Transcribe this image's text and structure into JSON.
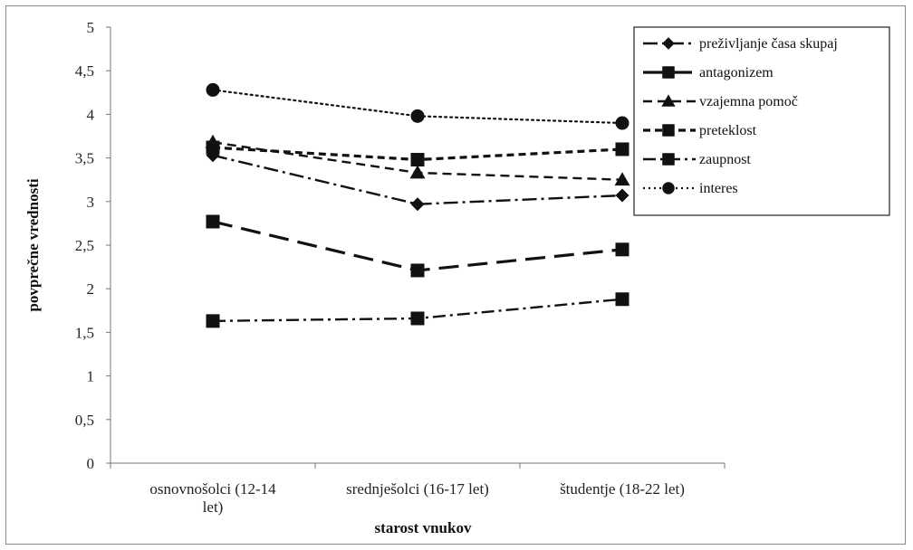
{
  "chart_data": {
    "type": "line",
    "title": "",
    "xlabel": "starost vnukov",
    "ylabel": "povprečne vrednosti",
    "categories": [
      "osnovnošolci (12-14 let)",
      "srednješolci (16-17 let)",
      "študentje (18-22 let)"
    ],
    "category_lines": [
      [
        "osnovnošolci (12-14",
        "let)"
      ],
      [
        "srednješolci (16-17 let)"
      ],
      [
        "študentje (18-22 let)"
      ]
    ],
    "ylim": [
      0,
      5
    ],
    "yticks": [
      "0",
      "0,5",
      "1",
      "1,5",
      "2",
      "2,5",
      "3",
      "3,5",
      "4",
      "4,5",
      "5"
    ],
    "grid": false,
    "legend_position": "top-right",
    "series": [
      {
        "name": "preživljanje časa skupaj",
        "values": [
          3.53,
          2.97,
          3.07
        ],
        "marker": "diamond",
        "dash": "16,5,3,5",
        "line": "medium"
      },
      {
        "name": "antagonizem",
        "values": [
          2.77,
          2.21,
          2.45
        ],
        "marker": "square",
        "dash": "22,10",
        "line": "thick"
      },
      {
        "name": "vzajemna pomoč",
        "values": [
          3.68,
          3.33,
          3.25
        ],
        "marker": "triangle",
        "dash": "10,6",
        "line": "medium"
      },
      {
        "name": "preteklost",
        "values": [
          3.62,
          3.48,
          3.6
        ],
        "marker": "square",
        "dash": "8,5",
        "line": "thick"
      },
      {
        "name": "zaupnost",
        "values": [
          1.63,
          1.66,
          1.88
        ],
        "marker": "square",
        "dash": "14,5,3,5",
        "line": "medium"
      },
      {
        "name": "interes",
        "values": [
          4.28,
          3.98,
          3.9
        ],
        "marker": "circle",
        "dash": "2,4",
        "line": "dotted"
      }
    ]
  }
}
